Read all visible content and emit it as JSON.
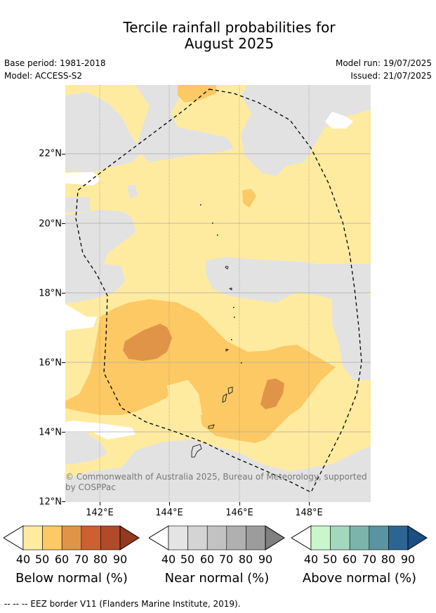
{
  "title": "Tercile rainfall probabilities for\nAugust 2025",
  "meta_left": [
    "Base period: 1981-2018",
    "Model: ACCESS-S2"
  ],
  "meta_right": [
    "Model run: 19/07/2025",
    "Issued: 21/07/2025"
  ],
  "map": {
    "lat_labels": [
      "22°N",
      "20°N",
      "18°N",
      "16°N",
      "14°N",
      "12°N"
    ],
    "lon_labels": [
      "142°E",
      "144°E",
      "146°E",
      "148°E"
    ],
    "credit": "© Commonwealth of Australia 2025, Bureau of Meteorology, supported by COSPPac"
  },
  "colorbars": [
    {
      "title": "Below normal (%)",
      "ticks": [
        "40",
        "50",
        "60",
        "70",
        "80",
        "90"
      ],
      "colors": [
        "#ffeba0",
        "#fdc964",
        "#e09448",
        "#cc6030",
        "#b04a28",
        "#943820"
      ]
    },
    {
      "title": "Near normal (%)",
      "ticks": [
        "40",
        "50",
        "60",
        "70",
        "80",
        "90"
      ],
      "colors": [
        "#e4e4e4",
        "#d4d4d4",
        "#c2c2c2",
        "#b0b0b0",
        "#9c9c9c",
        "#808080"
      ]
    },
    {
      "title": "Above normal (%)",
      "ticks": [
        "40",
        "50",
        "60",
        "70",
        "80",
        "90"
      ],
      "colors": [
        "#c8f7cc",
        "#a4d8be",
        "#7cb4ac",
        "#5a94a0",
        "#2c6494",
        "#1a4e84"
      ]
    }
  ],
  "footer": "--  --  -- EEZ border V11 (Flanders Marine Institute, 2019).",
  "colors": {
    "light_yellow": "#ffeba0",
    "yellow": "#fdc964",
    "orange": "#e09448",
    "grey": "#e2e2e2"
  }
}
